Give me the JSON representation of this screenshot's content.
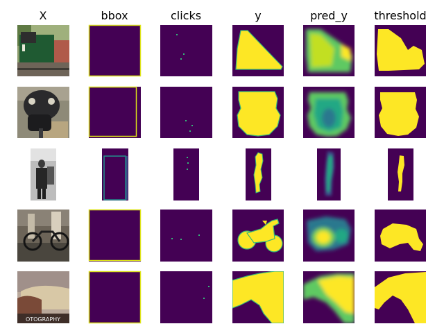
{
  "figure": {
    "column_titles": [
      "X",
      "bbox",
      "clicks",
      "y",
      "pred_y",
      "threshold"
    ],
    "rows": [
      {
        "subject": "green locomotive on rails"
      },
      {
        "subject": "parking meter"
      },
      {
        "subject": "person standing (grayscale)"
      },
      {
        "subject": "bicycle on street"
      },
      {
        "subject": "sofa with photo watermark",
        "watermark": "OTOGRAPHY"
      }
    ],
    "colors": {
      "background_purple": "#440154",
      "foreground_yellow": "#fde725",
      "bbox_edge": "#dde318",
      "click_dot": "#35b779",
      "mid_teal": "#21918c",
      "mid_blue": "#3b528b"
    }
  }
}
